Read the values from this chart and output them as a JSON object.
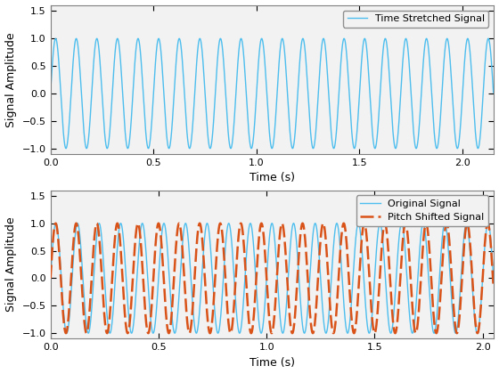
{
  "xlabel": "Time (s)",
  "ylabel": "Signal Amplitude",
  "xlim1": [
    0,
    2.15
  ],
  "xlim2": [
    0,
    2.05
  ],
  "ylim": [
    -1.1,
    1.6
  ],
  "yticks": [
    -1,
    -0.5,
    0,
    0.5,
    1,
    1.5
  ],
  "xticks1": [
    0,
    0.5,
    1,
    1.5,
    2
  ],
  "xticks2": [
    0,
    0.5,
    1,
    1.5,
    2
  ],
  "signal1_freq": 10.0,
  "signal1_duration": 2.15,
  "signal2_orig_freq": 10.0,
  "signal2_pitch_freq": 10.5,
  "signal2_duration": 2.05,
  "line_color_blue": "#4DBEEE",
  "line_color_orange": "#D95319",
  "legend1": "Time Stretched Signal",
  "legend2_orig": "Original Signal",
  "legend2_pitch": "Pitch Shifted Signal",
  "axes_bg": "#F2F2F2",
  "sample_rate": 4000
}
